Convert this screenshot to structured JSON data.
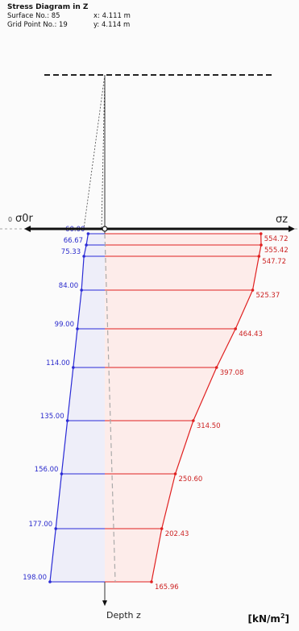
{
  "header": {
    "title": "Stress Diagram in Z",
    "surface_label": "Surface No.: 85",
    "x_label": "x:  4.111 m",
    "grid_label": "Grid Point No.: 19",
    "y_label": "y:  4.114 m"
  },
  "axis": {
    "left_symbol": "σ0r",
    "zero_label": "0",
    "right_symbol": "σz",
    "depth_label": "Depth z",
    "unit_text": "[kN/m",
    "unit_sup": "2",
    "unit_close": "]"
  },
  "chart_data": {
    "type": "line",
    "series": [
      {
        "values": [
          60.0,
          66.67,
          75.33,
          84.0,
          99.0,
          114.0,
          135.0,
          156.0,
          177.0,
          198.0
        ],
        "labels": [
          "60.00",
          "66.67",
          "75.33",
          "84.00",
          "99.00",
          "114.00",
          "135.00",
          "156.00",
          "177.00",
          "198.00"
        ]
      },
      {
        "values": [
          554.72,
          555.42,
          547.72,
          525.37,
          464.43,
          397.08,
          314.5,
          250.6,
          202.43,
          165.96
        ],
        "labels": [
          "554.72",
          "555.42",
          "547.72",
          "525.37",
          "464.43",
          "397.08",
          "314.50",
          "250.60",
          "202.43",
          "165.96"
        ]
      }
    ]
  },
  "colors": {
    "left": "#2b2bd6",
    "right": "#e02020",
    "left_fill": "#eeeef9",
    "right_fill": "#fdecea"
  }
}
